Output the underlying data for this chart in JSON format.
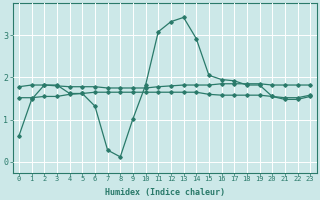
{
  "xlabel": "Humidex (Indice chaleur)",
  "ylabel": "",
  "bg_color": "#cce8e8",
  "line_color": "#2a7a6a",
  "grid_color": "#ffffff",
  "xlim": [
    -0.5,
    23.5
  ],
  "ylim": [
    -0.25,
    3.75
  ],
  "yticks": [
    0,
    1,
    2,
    3
  ],
  "xticks": [
    0,
    1,
    2,
    3,
    4,
    5,
    6,
    7,
    8,
    9,
    10,
    11,
    12,
    13,
    14,
    15,
    16,
    17,
    18,
    19,
    20,
    21,
    22,
    23
  ],
  "line1_x": [
    0,
    1,
    2,
    3,
    4,
    5,
    6,
    7,
    8,
    9,
    10,
    11,
    12,
    13,
    14,
    15,
    16,
    17,
    18,
    19,
    20,
    21,
    22,
    23
  ],
  "line1_y": [
    0.62,
    1.48,
    1.82,
    1.82,
    1.62,
    1.62,
    1.32,
    0.28,
    0.12,
    1.02,
    1.82,
    3.08,
    3.32,
    3.42,
    2.92,
    2.05,
    1.95,
    1.92,
    1.82,
    1.82,
    1.55,
    1.48,
    1.48,
    1.55
  ],
  "line2_x": [
    0,
    1,
    2,
    3,
    4,
    5,
    6,
    7,
    8,
    9,
    10,
    11,
    12,
    13,
    14,
    15,
    16,
    17,
    18,
    19,
    20,
    21,
    22,
    23
  ],
  "line2_y": [
    1.78,
    1.82,
    1.82,
    1.8,
    1.78,
    1.78,
    1.78,
    1.75,
    1.75,
    1.75,
    1.75,
    1.78,
    1.8,
    1.82,
    1.82,
    1.82,
    1.85,
    1.85,
    1.85,
    1.85,
    1.82,
    1.82,
    1.82,
    1.82
  ],
  "line3_x": [
    0,
    1,
    2,
    3,
    4,
    5,
    6,
    7,
    8,
    9,
    10,
    11,
    12,
    13,
    14,
    15,
    16,
    17,
    18,
    19,
    20,
    21,
    22,
    23
  ],
  "line3_y": [
    1.52,
    1.52,
    1.55,
    1.55,
    1.6,
    1.62,
    1.65,
    1.65,
    1.65,
    1.65,
    1.65,
    1.65,
    1.65,
    1.65,
    1.65,
    1.6,
    1.58,
    1.58,
    1.58,
    1.58,
    1.55,
    1.52,
    1.52,
    1.58
  ],
  "xlabel_fontsize": 6.0,
  "tick_fontsize": 5.0,
  "ytick_fontsize": 6.0
}
